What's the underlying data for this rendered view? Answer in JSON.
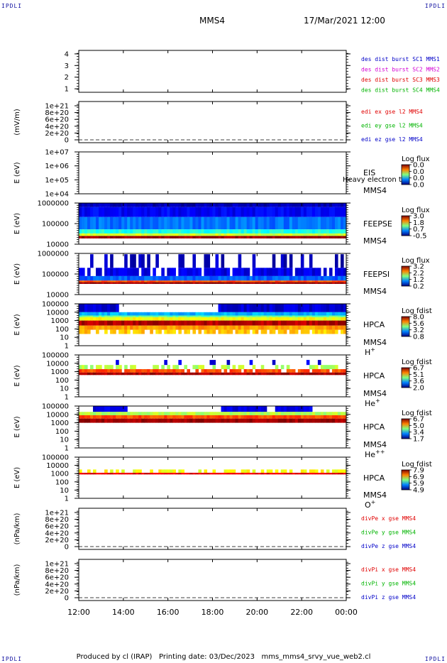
{
  "corner_marks": {
    "tl": "IPDLI",
    "tr": "IPDLI",
    "bl": "IPDLI",
    "br": "IPDLI"
  },
  "header": {
    "spacecraft": "MMS4",
    "datetime": "17/Mar/2021 12:00"
  },
  "footer": {
    "produced_by": "Produced by cl (IRAP)",
    "printing_date": "Printing date: 03/Dec/2023",
    "filename": "mms_mms4_srvy_vue_web2.cl"
  },
  "colors": {
    "mms1": "#0000c8",
    "mms2": "#d400d4",
    "mms3": "#e00000",
    "mms4": "#00b400",
    "x": "#e00000",
    "y": "#00b400",
    "z": "#0000c8"
  },
  "chart_data": [
    {
      "type": "line",
      "panel": "des-dist-burst",
      "ylabel": "",
      "yticks": [
        "4",
        "3",
        "2",
        "1"
      ],
      "ylim": [
        0.7,
        4.3
      ],
      "legend": [
        {
          "text": "des dist burst SC1 MMS1",
          "color": "#0000c8"
        },
        {
          "text": "des dist burst SC2 MMS2",
          "color": "#d400d4"
        },
        {
          "text": "des dist burst SC3 MMS3",
          "color": "#e00000"
        },
        {
          "text": "des dist burst SC4 MMS4",
          "color": "#00b400"
        }
      ],
      "series": []
    },
    {
      "type": "line",
      "panel": "edi-e-gse",
      "ylabel": "(mV/m)",
      "yticks": [
        "1e+21",
        "8e+20",
        "6e+20",
        "4e+20",
        "2e+20",
        "0"
      ],
      "ylim": [
        0,
        1e+21
      ],
      "legend": [
        {
          "text": "edi ex gse l2 MMS4",
          "color": "#e00000"
        },
        {
          "text": "edi ey gse l2 MMS4",
          "color": "#00b400"
        },
        {
          "text": "edi ez gse l2 MMS4",
          "color": "#0000c8"
        }
      ],
      "zero_line": true,
      "series": []
    },
    {
      "type": "heatmap",
      "panel": "eis",
      "ylabel": "E (eV)",
      "yticks": [
        "1e+07",
        "1e+06",
        "1e+05",
        "1e+04"
      ],
      "instrument": "EIS",
      "sc": "MMS4",
      "note": "Heavy electron to",
      "colorbar": {
        "title": "Log flux",
        "ticks": [
          "0.0",
          "0.0",
          "0.0",
          "0.0"
        ]
      },
      "bands": []
    },
    {
      "type": "heatmap",
      "panel": "feeps-e",
      "ylabel": "E (eV)",
      "yticks": [
        "1000000",
        "100000",
        "10000"
      ],
      "instrument": "FEEPSE",
      "sc": "MMS4",
      "colorbar": {
        "title": "Log flux",
        "ticks": [
          "3.0",
          "1.8",
          "0.7",
          "-0.5"
        ]
      },
      "bands": [
        {
          "ylo": 0.0,
          "yhi": 0.1,
          "level": 0.05,
          "density": 1.0
        },
        {
          "ylo": 0.1,
          "yhi": 0.34,
          "level": 0.12,
          "density": 1.0
        },
        {
          "ylo": 0.34,
          "yhi": 0.64,
          "level": 0.24,
          "density": 1.0
        },
        {
          "ylo": 0.64,
          "yhi": 0.74,
          "level": 0.4,
          "density": 1.0
        },
        {
          "ylo": 0.74,
          "yhi": 0.8,
          "level": 0.58,
          "density": 1.0
        },
        {
          "ylo": 0.8,
          "yhi": 0.86,
          "level": 0.98,
          "density": 1.0
        }
      ]
    },
    {
      "type": "heatmap",
      "panel": "feeps-i",
      "ylabel": "E (eV)",
      "yticks": [
        "1000000",
        "100000",
        "10000"
      ],
      "instrument": "FEEPSI",
      "sc": "MMS4",
      "colorbar": {
        "title": "Log flux",
        "ticks": [
          "3.2",
          "2.2",
          "1.2",
          "0.2"
        ]
      },
      "bands": [
        {
          "ylo": 0.02,
          "yhi": 0.35,
          "level": 0.06,
          "density": 0.28
        },
        {
          "ylo": 0.35,
          "yhi": 0.55,
          "level": 0.1,
          "density": 0.85
        },
        {
          "ylo": 0.55,
          "yhi": 0.66,
          "level": 0.22,
          "density": 1.0
        },
        {
          "ylo": 0.66,
          "yhi": 0.7,
          "level": 0.8,
          "density": 1.0
        },
        {
          "ylo": 0.7,
          "yhi": 0.74,
          "level": 0.98,
          "density": 1.0
        }
      ]
    },
    {
      "type": "heatmap",
      "panel": "hpca-hplus",
      "ylabel": "E (eV)",
      "yticks": [
        "100000",
        "10000",
        "1000",
        "100",
        "10",
        "1"
      ],
      "instrument": "HPCA",
      "sc": "MMS4",
      "species": "H",
      "species_sup": "+",
      "colorbar": {
        "title": "Log fdist",
        "ticks": [
          "8.0",
          "5.6",
          "3.2",
          "0.8"
        ]
      },
      "bands": [
        {
          "ylo": 0.0,
          "yhi": 0.2,
          "level": 0.08,
          "density": 1.0,
          "t_ranges": [
            [
              0.0,
              0.1
            ],
            [
              0.1,
              0.15
            ],
            [
              0.52,
              0.73
            ],
            [
              0.73,
              1.0
            ]
          ]
        },
        {
          "ylo": 0.2,
          "yhi": 0.28,
          "level": 0.3,
          "density": 1.0
        },
        {
          "ylo": 0.28,
          "yhi": 0.32,
          "level": 0.48,
          "density": 1.0
        },
        {
          "ylo": 0.32,
          "yhi": 0.4,
          "level": 0.62,
          "density": 1.0
        },
        {
          "ylo": 0.4,
          "yhi": 0.52,
          "level": 0.95,
          "density": 1.0
        },
        {
          "ylo": 0.52,
          "yhi": 0.62,
          "level": 0.72,
          "density": 1.0
        },
        {
          "ylo": 0.62,
          "yhi": 0.72,
          "level": 0.68,
          "density": 0.7
        }
      ]
    },
    {
      "type": "heatmap",
      "panel": "hpca-heplus",
      "ylabel": "E (eV)",
      "yticks": [
        "100000",
        "10000",
        "1000",
        "100",
        "10",
        "1"
      ],
      "instrument": "HPCA",
      "sc": "MMS4",
      "species": "He",
      "species_sup": "+",
      "colorbar": {
        "title": "Log fdist",
        "ticks": [
          "6.7",
          "5.1",
          "3.6",
          "2.0"
        ]
      },
      "bands": [
        {
          "ylo": 0.12,
          "yhi": 0.24,
          "level": 0.1,
          "density": 0.12
        },
        {
          "ylo": 0.24,
          "yhi": 0.34,
          "level": 0.55,
          "density": 0.45
        },
        {
          "ylo": 0.34,
          "yhi": 0.42,
          "level": 0.8,
          "density": 0.8
        },
        {
          "ylo": 0.42,
          "yhi": 0.48,
          "level": 0.96,
          "density": 1.0
        }
      ]
    },
    {
      "type": "heatmap",
      "panel": "hpca-heplusplus",
      "ylabel": "E (eV)",
      "yticks": [
        "100000",
        "10000",
        "1000",
        "100",
        "10",
        "1"
      ],
      "instrument": "HPCA",
      "sc": "MMS4",
      "species": "He",
      "species_sup": "++",
      "colorbar": {
        "title": "Log fdist",
        "ticks": [
          "6.7",
          "5.0",
          "3.4",
          "1.7"
        ]
      },
      "bands": [
        {
          "ylo": 0.0,
          "yhi": 0.14,
          "level": 0.1,
          "density": 1.0,
          "t_ranges": [
            [
              0.05,
              0.18
            ],
            [
              0.53,
              0.7
            ],
            [
              0.73,
              0.87
            ]
          ]
        },
        {
          "ylo": 0.14,
          "yhi": 0.22,
          "level": 0.55,
          "density": 1.0
        },
        {
          "ylo": 0.22,
          "yhi": 0.3,
          "level": 0.8,
          "density": 1.0
        },
        {
          "ylo": 0.3,
          "yhi": 0.4,
          "level": 0.97,
          "density": 1.0
        }
      ]
    },
    {
      "type": "heatmap",
      "panel": "hpca-oplus",
      "ylabel": "E (eV)",
      "yticks": [
        "100000",
        "10000",
        "1000",
        "100",
        "10",
        "1"
      ],
      "instrument": "HPCA",
      "sc": "MMS4",
      "species": "O",
      "species_sup": "+",
      "colorbar": {
        "title": "Log fdist",
        "ticks": [
          "7.9",
          "6.9",
          "5.9",
          "4.9"
        ]
      },
      "bands": [
        {
          "ylo": 0.3,
          "yhi": 0.38,
          "level": 0.62,
          "density": 0.5
        },
        {
          "ylo": 0.38,
          "yhi": 0.42,
          "level": 0.9,
          "density": 1.0
        }
      ]
    },
    {
      "type": "line",
      "panel": "divpe-gse",
      "ylabel": "(nPa/km)",
      "yticks": [
        "1e+21",
        "8e+20",
        "6e+20",
        "4e+20",
        "2e+20",
        "0"
      ],
      "ylim": [
        0,
        1e+21
      ],
      "legend": [
        {
          "text": "divPe x gse MMS4",
          "color": "#e00000"
        },
        {
          "text": "divPe y gse MMS4",
          "color": "#00b400"
        },
        {
          "text": "divPe z gse MMS4",
          "color": "#0000c8"
        }
      ],
      "zero_line": true,
      "series": []
    },
    {
      "type": "line",
      "panel": "divpi-gse",
      "ylabel": "(nPa/km)",
      "yticks": [
        "1e+21",
        "8e+20",
        "6e+20",
        "4e+20",
        "2e+20",
        "0"
      ],
      "ylim": [
        0,
        1e+21
      ],
      "legend": [
        {
          "text": "divPi x gse MMS4",
          "color": "#e00000"
        },
        {
          "text": "divPi y gse MMS4",
          "color": "#00b400"
        },
        {
          "text": "divPi z gse MMS4",
          "color": "#0000c8"
        }
      ],
      "zero_line": true,
      "series": []
    }
  ],
  "time_axis": {
    "ticks": [
      "12:00",
      "14:00",
      "16:00",
      "18:00",
      "20:00",
      "22:00",
      "00:00"
    ]
  }
}
